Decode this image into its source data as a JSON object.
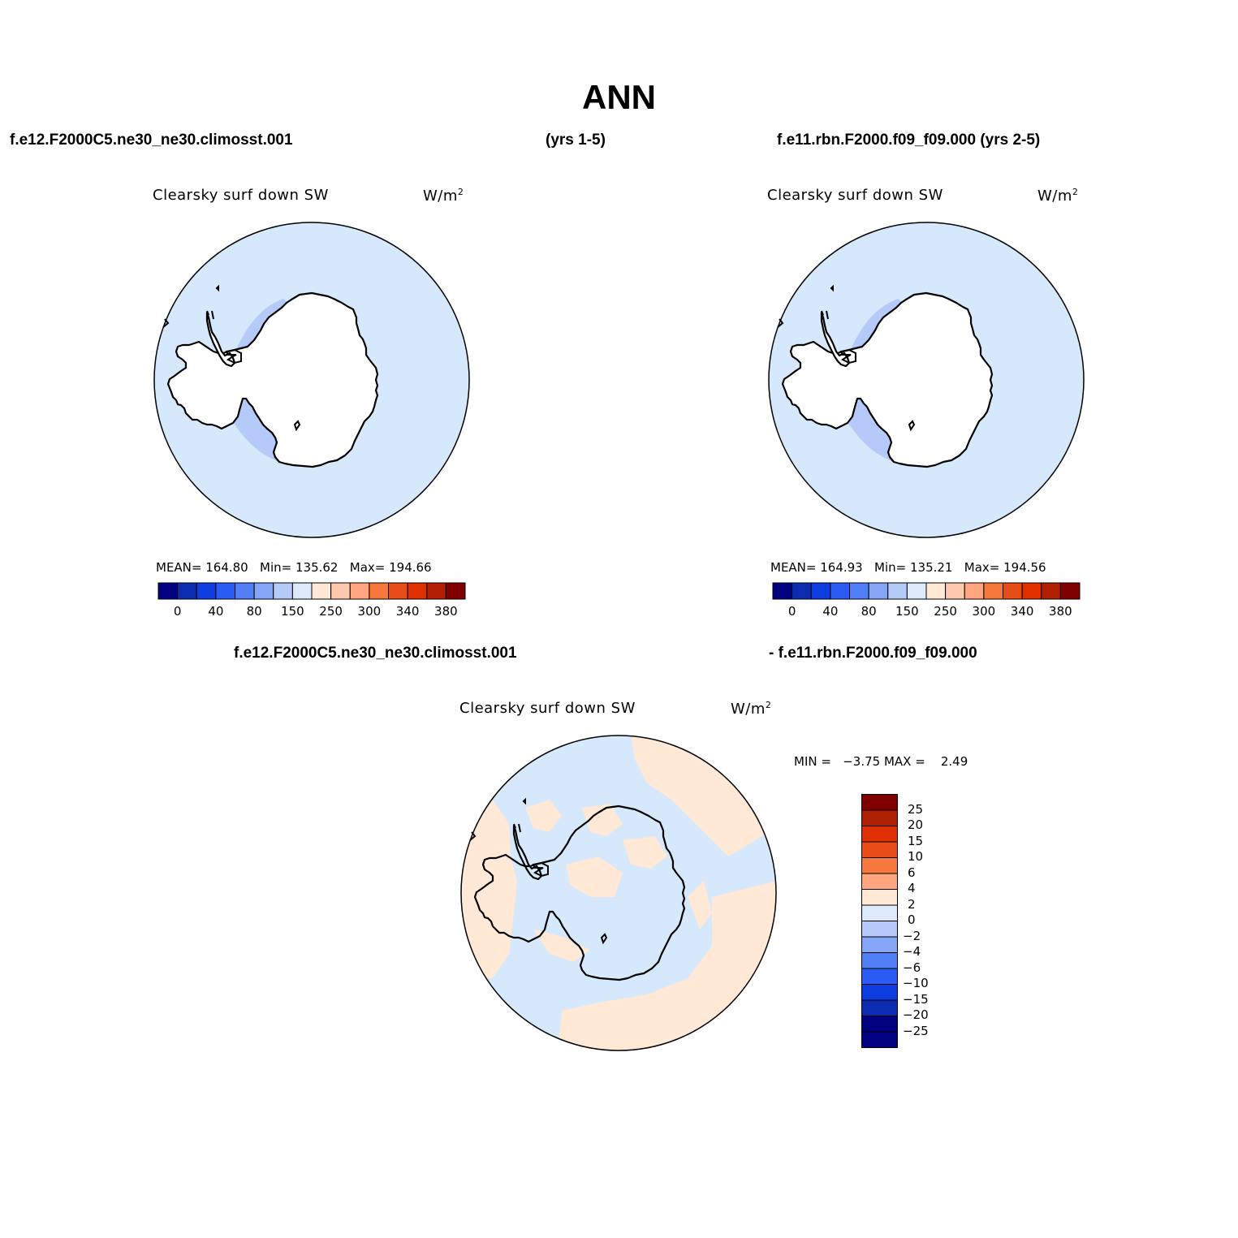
{
  "header": {
    "title": "ANN",
    "case1_label": "f.e12.F2000C5.ne30_ne30.climosst.001",
    "case1_years": "(yrs 1-5)",
    "case2_label": "f.e11.rbn.F2000.f09_f09.000 (yrs 2-5)",
    "diff_case1": "f.e12.F2000C5.ne30_ne30.climosst.001",
    "diff_case2": "- f.e11.rbn.F2000.f09_f09.000"
  },
  "panels": [
    {
      "variable": "Clearsky surf down SW",
      "units_base": "W/m",
      "units_exp": "2",
      "stats": "MEAN= 164.80   Min= 135.62   Max= 194.66"
    },
    {
      "variable": "Clearsky surf down SW",
      "units_base": "W/m",
      "units_exp": "2",
      "stats": "MEAN= 164.93   Min= 135.21   Max= 194.56"
    },
    {
      "variable": "Clearsky surf down SW",
      "units_base": "W/m",
      "units_exp": "2",
      "stats": "MIN =   −3.75 MAX =    2.49"
    }
  ],
  "colorbar_main": {
    "colors": [
      "#000080",
      "#0b2bb0",
      "#0d3ce0",
      "#2a5cf5",
      "#4f7ef5",
      "#85a5f7",
      "#b6caf9",
      "#dbe9fb",
      "#ffe8d6",
      "#ffc9ad",
      "#ffa57f",
      "#f7783d",
      "#e84d18",
      "#e03000",
      "#b02000",
      "#800000"
    ],
    "labels": [
      "0",
      "40",
      "80",
      "150",
      "250",
      "300",
      "340",
      "380"
    ]
  },
  "colorbar_diff": {
    "colors": [
      "#800000",
      "#b02000",
      "#e03000",
      "#e84d18",
      "#f7783d",
      "#ffa57f",
      "#ffe8d6",
      "#dbe9fb",
      "#b6caf9",
      "#85a5f7",
      "#4f7ef5",
      "#2a5cf5",
      "#0d3ce0",
      "#0b2bb0",
      "#000080",
      "#000080"
    ],
    "labels": [
      "25",
      "20",
      "15",
      "10",
      "6",
      "4",
      "2",
      "0",
      "−2",
      "−4",
      "−6",
      "−10",
      "−15",
      "−20",
      "−25"
    ]
  },
  "map_colors": {
    "ocean": "#d6e8fb",
    "coastal_band": "#b6caf9",
    "positive_diff": "#ffe8d6",
    "coastline": "#000000"
  }
}
